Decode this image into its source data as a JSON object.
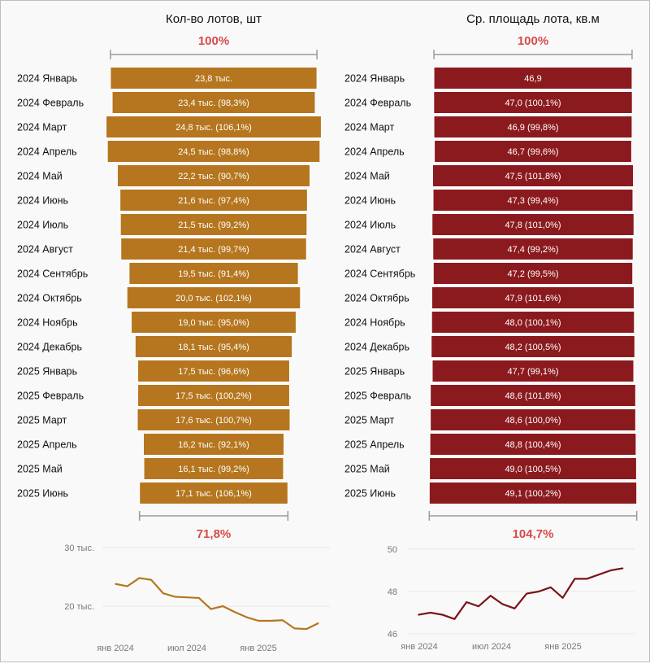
{
  "colors": {
    "count_bar": "#b5761f",
    "area_bar": "#8b1a1e",
    "count_line": "#b5761f",
    "area_line": "#7a1318",
    "highlight": "#d64a4a",
    "bracket": "#9a9a9a",
    "grid": "#e6e6e6"
  },
  "chart_data": [
    {
      "type": "bar",
      "title": "Кол-во лотов, шт",
      "orientation": "horizontal-funnel",
      "top_percent": "100%",
      "bottom_percent": "71,8%",
      "categories": [
        "2024 Январь",
        "2024 Февраль",
        "2024 Март",
        "2024 Апрель",
        "2024 Май",
        "2024 Июнь",
        "2024 Июль",
        "2024 Август",
        "2024 Сентябрь",
        "2024 Октябрь",
        "2024 Ноябрь",
        "2024 Декабрь",
        "2025 Январь",
        "2025 Февраль",
        "2025 Март",
        "2025 Апрель",
        "2025 Май",
        "2025 Июнь"
      ],
      "values": [
        23.8,
        23.4,
        24.8,
        24.5,
        22.2,
        21.6,
        21.5,
        21.4,
        19.5,
        20.0,
        19.0,
        18.1,
        17.5,
        17.5,
        17.6,
        16.2,
        16.1,
        17.1
      ],
      "unit": "тыс.",
      "labels": [
        "23,8 тыс.",
        "23,4 тыс. (98,3%)",
        "24,8 тыс. (106,1%)",
        "24,5 тыс. (98,8%)",
        "22,2 тыс. (90,7%)",
        "21,6 тыс. (97,4%)",
        "21,5 тыс. (99,2%)",
        "21,4 тыс. (99,7%)",
        "19,5 тыс. (91,4%)",
        "20,0 тыс. (102,1%)",
        "19,0 тыс. (95,0%)",
        "18,1 тыс. (95,4%)",
        "17,5 тыс. (96,6%)",
        "17,5 тыс. (100,2%)",
        "17,6 тыс. (100,7%)",
        "16,2 тыс. (92,1%)",
        "16,1 тыс. (99,2%)",
        "17,1 тыс. (106,1%)"
      ]
    },
    {
      "type": "bar",
      "title": "Ср. площадь лота, кв.м",
      "orientation": "horizontal-funnel",
      "top_percent": "100%",
      "bottom_percent": "104,7%",
      "categories": [
        "2024 Январь",
        "2024 Февраль",
        "2024 Март",
        "2024 Апрель",
        "2024 Май",
        "2024 Июнь",
        "2024 Июль",
        "2024 Август",
        "2024 Сентябрь",
        "2024 Октябрь",
        "2024 Ноябрь",
        "2024 Декабрь",
        "2025 Январь",
        "2025 Февраль",
        "2025 Март",
        "2025 Апрель",
        "2025 Май",
        "2025 Июнь"
      ],
      "values": [
        46.9,
        47.0,
        46.9,
        46.7,
        47.5,
        47.3,
        47.8,
        47.4,
        47.2,
        47.9,
        48.0,
        48.2,
        47.7,
        48.6,
        48.6,
        48.8,
        49.0,
        49.1
      ],
      "labels": [
        "46,9",
        "47,0 (100,1%)",
        "46,9 (99,8%)",
        "46,7 (99,6%)",
        "47,5 (101,8%)",
        "47,3 (99,4%)",
        "47,8 (101,0%)",
        "47,4 (99,2%)",
        "47,2 (99,5%)",
        "47,9 (101,6%)",
        "48,0 (100,1%)",
        "48,2 (100,5%)",
        "47,7 (99,1%)",
        "48,6 (101,8%)",
        "48,6 (100,0%)",
        "48,8 (100,4%)",
        "49,0 (100,5%)",
        "49,1 (100,2%)"
      ]
    },
    {
      "type": "line",
      "x_ticks": [
        "янв 2024",
        "июл 2024",
        "янв 2025"
      ],
      "y_ticks": [
        "30 тыс.",
        "20 тыс."
      ],
      "y_tick_values": [
        30,
        20
      ],
      "ylim": [
        14,
        31
      ],
      "grid": true,
      "values": [
        23.8,
        23.4,
        24.8,
        24.5,
        22.2,
        21.6,
        21.5,
        21.4,
        19.5,
        20.0,
        19.0,
        18.1,
        17.5,
        17.5,
        17.6,
        16.2,
        16.1,
        17.1
      ]
    },
    {
      "type": "line",
      "x_ticks": [
        "янв 2024",
        "июл 2024",
        "янв 2025"
      ],
      "y_ticks": [
        "50",
        "48",
        "46"
      ],
      "y_tick_values": [
        50,
        48,
        46
      ],
      "ylim": [
        46,
        50
      ],
      "grid": true,
      "values": [
        46.9,
        47.0,
        46.9,
        46.7,
        47.5,
        47.3,
        47.8,
        47.4,
        47.2,
        47.9,
        48.0,
        48.2,
        47.7,
        48.6,
        48.6,
        48.8,
        49.0,
        49.1
      ]
    }
  ]
}
